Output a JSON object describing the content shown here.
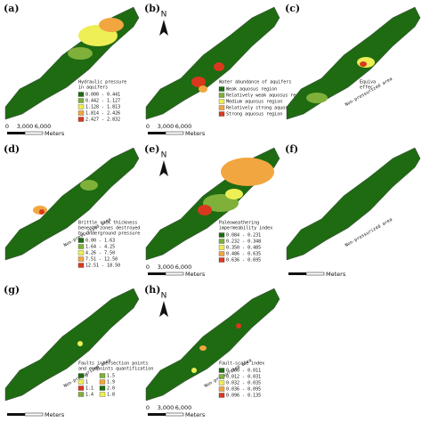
{
  "panels": [
    {
      "label": "(a)",
      "legend": {
        "title": [
          "Hydraulic pressure",
          "in aquifers"
        ],
        "items": [
          "0.000 - 0.441",
          "0.442 - 1.127",
          "1.128 - 1.813",
          "1.814 - 2.426",
          "2.427 - 2.832"
        ]
      },
      "scale": [
        "0",
        "3,000",
        "6,000",
        "Meters"
      ]
    },
    {
      "label": "(b)",
      "north": "N",
      "legend": {
        "title": [
          "Water abundance of aquifers"
        ],
        "items": [
          "Weak aquosus region",
          "Relatively weak aquosus region",
          "Medium aquosus region",
          "Relatively strong aquosus region",
          "Strong aquosus region"
        ]
      },
      "scale": [
        "0",
        "3,000",
        "6,000",
        "Meters"
      ]
    },
    {
      "label": "(c)",
      "note": "Non-pressurized area",
      "legend": {
        "title": [
          "Equiva",
          "effec"
        ],
        "items": []
      }
    },
    {
      "label": "(d)",
      "note": "Non-pressurized area",
      "legend": {
        "title": [
          "Brittle rock thickness",
          "beneath zones destroyed",
          "by underground pressure"
        ],
        "items": [
          "0.00 - 1.63",
          "1.64 - 4.25",
          "4.26 - 7.50",
          "7.51 - 12.50",
          "12.51 - 18.50"
        ]
      }
    },
    {
      "label": "(e)",
      "north": "N",
      "legend": {
        "title": [
          "Paleoweathering",
          "impermeability index"
        ],
        "items": [
          "0.084 - 0.231",
          "0.232 - 0.348",
          "0.350 - 0.485",
          "0.486 - 0.635",
          "0.636 - 0.695"
        ]
      },
      "scale": [
        "0",
        "3,000",
        "6,000",
        "Meters"
      ]
    },
    {
      "label": "(f)",
      "note": "Non-pressurized area",
      "scale": [
        "Meters"
      ]
    },
    {
      "label": "(g)",
      "note": "Non-pressurized area",
      "legend": {
        "title": [
          "Faults intersection points",
          "and endpoints quantification"
        ],
        "items": [
          "0",
          "1.5",
          "1",
          "1.9",
          "1.1",
          "2.0",
          "1.4",
          "1.8"
        ]
      },
      "scale": [
        "Meters"
      ]
    },
    {
      "label": "(h)",
      "north": "N",
      "note": "Non-pressurized area",
      "legend": {
        "title": [
          "Fault-scale index"
        ],
        "items": [
          "0.000 - 0.011",
          "0.012 - 0.031",
          "0.032 - 0.035",
          "0.036 - 0.095",
          "0.096 - 0.135"
        ]
      },
      "scale": [
        "0",
        "3,000",
        "6,000",
        "Meters"
      ]
    }
  ]
}
